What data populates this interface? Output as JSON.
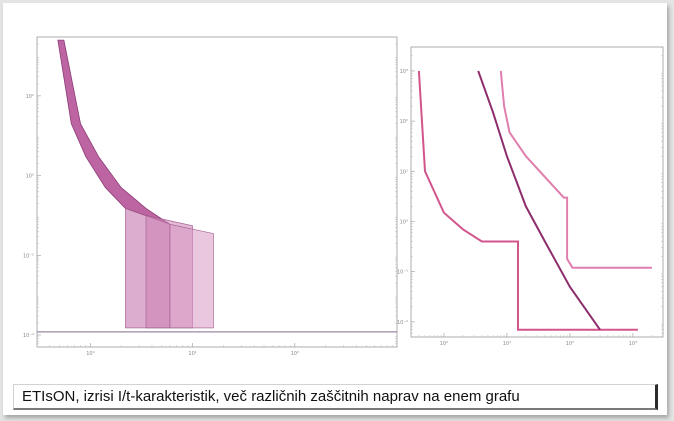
{
  "caption": "ETIsON, izrisi I/t-karakteristik, več različnih zaščitnih naprav na enem grafu",
  "chart_data": [
    {
      "type": "area",
      "xscale": "log",
      "yscale": "log",
      "xlim": [
        0.3,
        1000
      ],
      "ylim": [
        5e-05,
        3000
      ],
      "xticks": [
        1,
        10,
        100
      ],
      "xtick_labels": [
        "10⁰",
        "10¹",
        "10²"
      ],
      "yticks": [
        0.0001,
        0.01,
        1,
        100
      ],
      "ytick_labels": [
        "10⁻⁴",
        "10⁻²",
        "10⁰",
        "10²"
      ],
      "grid": true,
      "series": [
        {
          "color": "#b04a92",
          "upper": [
            [
              0.55,
              2500
            ],
            [
              0.8,
              20
            ],
            [
              1.2,
              3
            ],
            [
              2,
              0.5
            ],
            [
              3.5,
              0.15
            ],
            [
              6,
              0.06
            ]
          ],
          "lower": [
            [
              0.48,
              2500
            ],
            [
              0.65,
              20
            ],
            [
              0.9,
              3
            ],
            [
              1.4,
              0.5
            ],
            [
              2.2,
              0.15
            ]
          ]
        },
        {
          "color": "#c06aa6",
          "band": [
            [
              2.2,
              6
            ],
            [
              0.15,
              0.06
            ],
            [
              0.00015,
              0.00015
            ]
          ]
        },
        {
          "color": "#cc82b4",
          "band": [
            [
              3.5,
              10
            ],
            [
              0.1,
              0.055
            ],
            [
              0.00015,
              0.00015
            ]
          ]
        },
        {
          "color": "#d898c4",
          "band": [
            [
              6,
              16
            ],
            [
              0.06,
              0.035
            ],
            [
              0.00015,
              0.00015
            ]
          ]
        }
      ],
      "baseline": {
        "y": 0.00012,
        "x": [
          0.3,
          1000
        ],
        "color": "#9a8aa2"
      }
    },
    {
      "type": "line",
      "xscale": "log",
      "yscale": "log",
      "xlim": [
        0.3,
        3000
      ],
      "ylim": [
        0.005,
        3000
      ],
      "xticks": [
        1,
        10,
        100,
        1000
      ],
      "xtick_labels": [
        "10⁰",
        "10¹",
        "10²",
        "10³"
      ],
      "yticks": [
        0.01,
        0.1,
        1,
        10,
        100,
        1000
      ],
      "ytick_labels": [
        "10⁻²",
        "10⁻¹",
        "10⁰",
        "10¹",
        "10²",
        "10³"
      ],
      "grid": true,
      "series": [
        {
          "color": "#d2558c",
          "points": [
            [
              0.4,
              1000
            ],
            [
              0.5,
              10
            ],
            [
              1,
              1.5
            ],
            [
              2,
              0.7
            ],
            [
              4,
              0.4
            ],
            [
              15,
              0.4
            ],
            [
              15,
              0.007
            ],
            [
              1200,
              0.007
            ]
          ]
        },
        {
          "color": "#8e2d6c",
          "points": [
            [
              3.5,
              1000
            ],
            [
              6,
              150
            ],
            [
              10,
              20
            ],
            [
              20,
              2
            ],
            [
              40,
              0.4
            ],
            [
              100,
              0.05
            ],
            [
              300,
              0.007
            ]
          ]
        },
        {
          "color": "#e07fae",
          "points": [
            [
              8,
              1000
            ],
            [
              9,
              200
            ],
            [
              11,
              60
            ],
            [
              20,
              20
            ],
            [
              80,
              3
            ],
            [
              90,
              3
            ],
            [
              90,
              0.18
            ],
            [
              110,
              0.12
            ],
            [
              1000,
              0.12
            ],
            [
              2000,
              0.12
            ]
          ]
        }
      ]
    }
  ]
}
